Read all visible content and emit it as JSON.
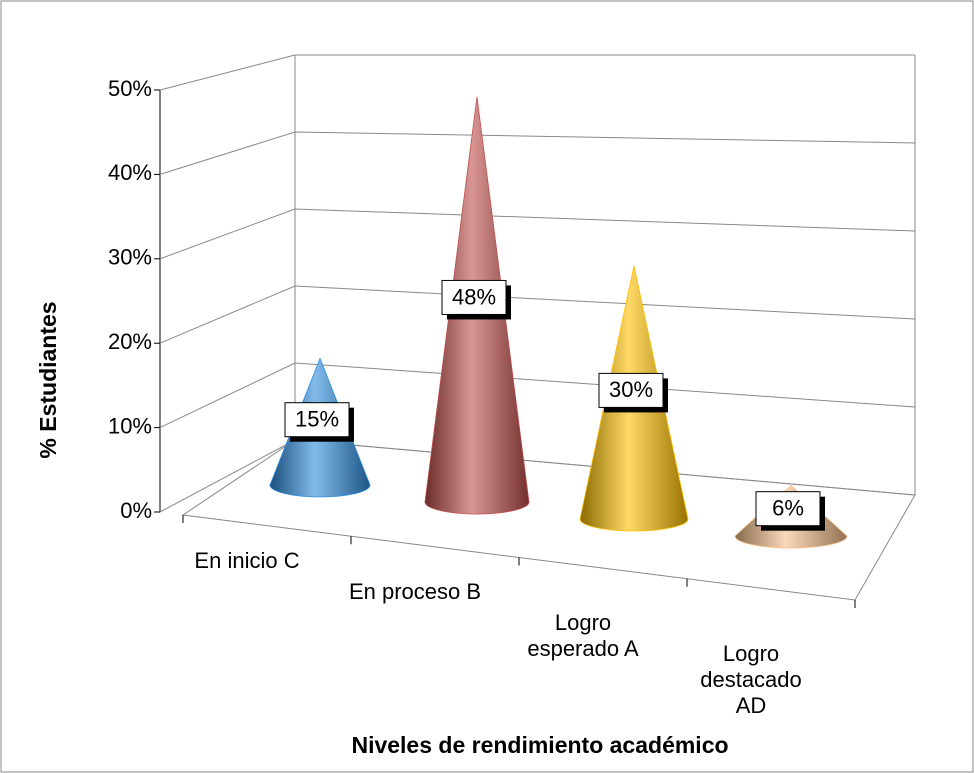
{
  "chart_data": {
    "type": "cone3d",
    "x_label": "Niveles de rendimiento académico",
    "y_label": "% Estudiantes",
    "categories": [
      "En inicio C",
      "En proceso B",
      "Logro esperado A",
      "Logro destacado AD"
    ],
    "values": [
      15,
      48,
      30,
      6
    ],
    "value_labels": [
      "15%",
      "48%",
      "30%",
      "6%"
    ],
    "colors": [
      "#2f8ee0",
      "#c0504d",
      "#ffc000",
      "#f5c08c"
    ],
    "ylim": [
      0,
      50
    ],
    "yticks": [
      {
        "value": 0,
        "label": "0%"
      },
      {
        "value": 10,
        "label": "10%"
      },
      {
        "value": 20,
        "label": "20%"
      },
      {
        "value": 30,
        "label": "30%"
      },
      {
        "value": 40,
        "label": "40%"
      },
      {
        "value": 50,
        "label": "50%"
      }
    ],
    "grid": true
  }
}
